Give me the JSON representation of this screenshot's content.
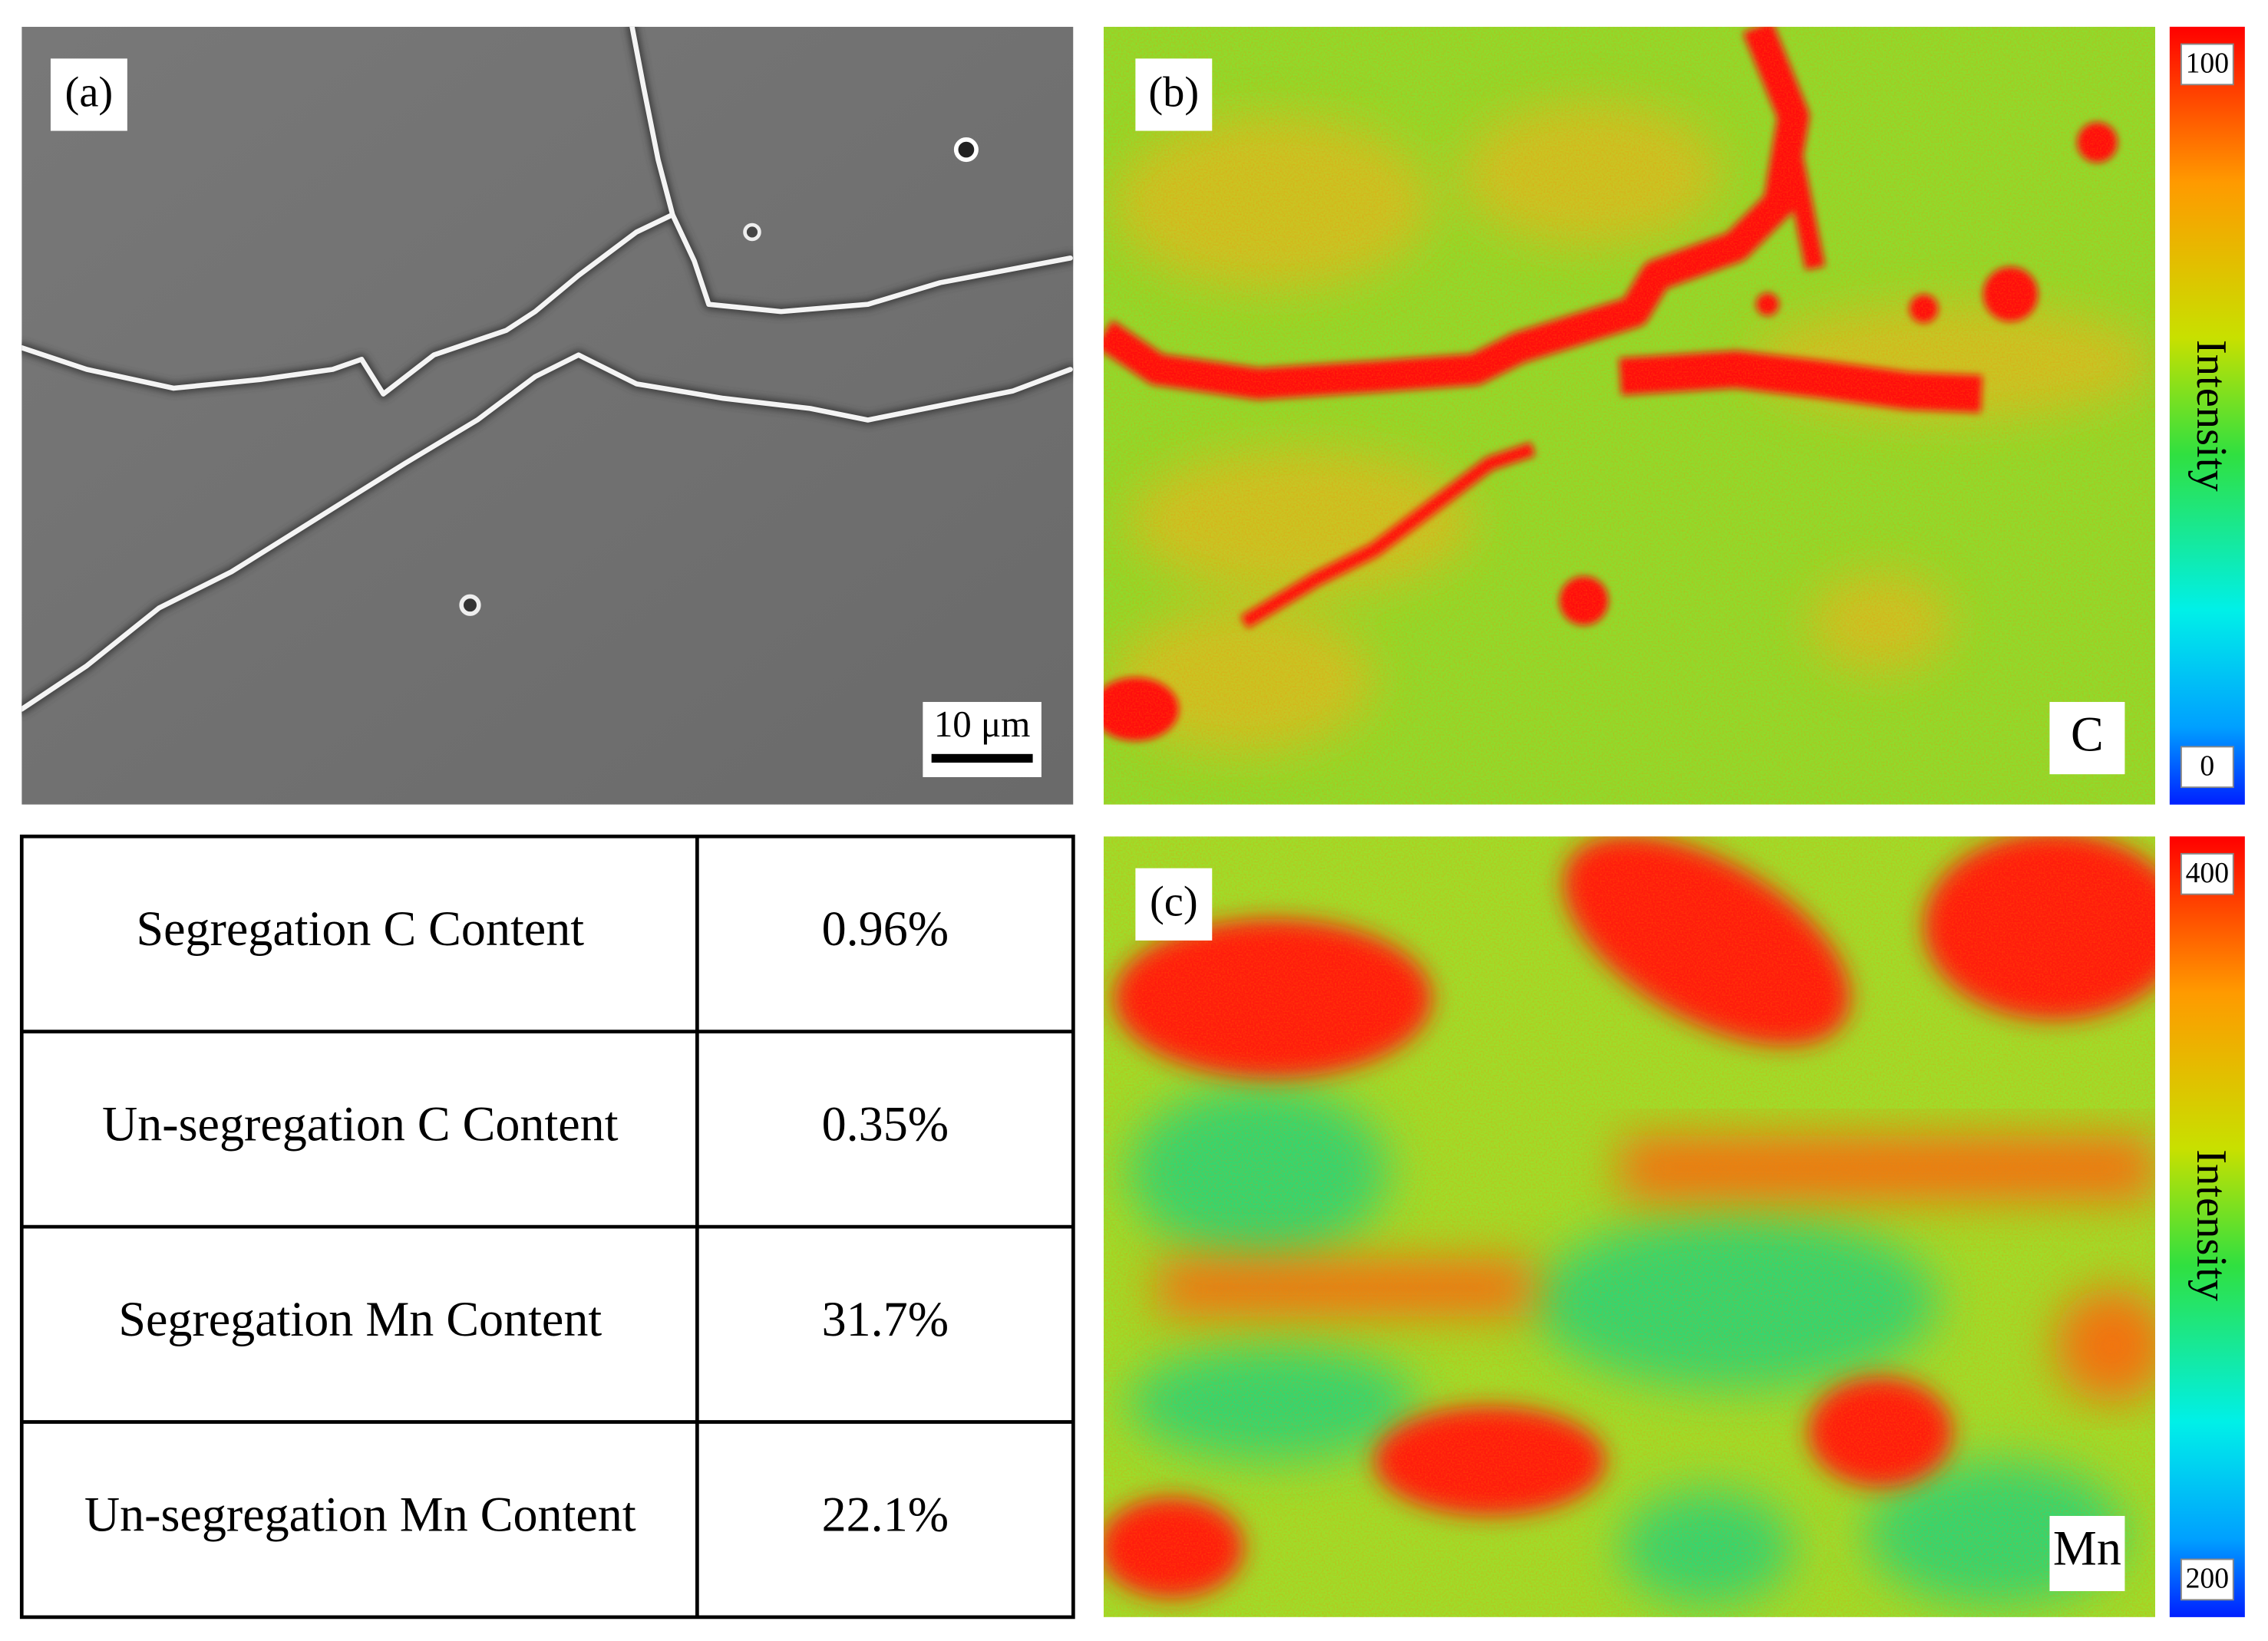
{
  "panels": [
    {
      "label": "(a)",
      "scale_bar": "10 μm"
    },
    {
      "label": "(b)",
      "element": "C",
      "colorbar": {
        "title": "Intensity",
        "max": "100",
        "min": "0"
      }
    },
    {
      "label": "(c)",
      "element": "Mn",
      "colorbar": {
        "title": "Intensity",
        "max": "400",
        "min": "200"
      }
    }
  ],
  "table": {
    "rows": [
      [
        "Segregation C Content",
        "0.96%"
      ],
      [
        "Un-segregation C Content",
        "0.35%"
      ],
      [
        "Segregation Mn Content",
        "31.7%"
      ],
      [
        "Un-segregation Mn Content",
        "22.1%"
      ]
    ]
  }
}
